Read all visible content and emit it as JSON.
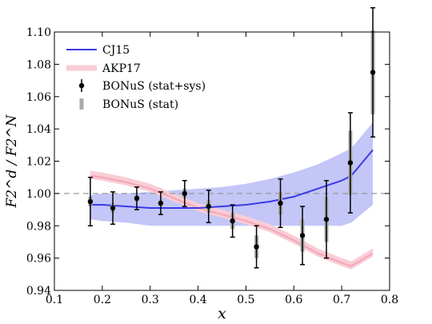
{
  "chart_data": {
    "type": "line",
    "xlabel": "x",
    "ylabel": "F2^d / F2^N",
    "xlim": [
      0.1,
      0.8
    ],
    "ylim": [
      0.94,
      1.1
    ],
    "xticks": [
      "0.1",
      "0.2",
      "0.3",
      "0.4",
      "0.5",
      "0.6",
      "0.7",
      "0.8"
    ],
    "yticks": [
      "0.94",
      "0.96",
      "0.98",
      "1.00",
      "1.02",
      "1.04",
      "1.06",
      "1.08",
      "1.10"
    ],
    "reference_line": 1.0,
    "grid": false,
    "legend_position": "top-left",
    "legend": [
      "CJ15",
      "AKP17",
      "BONuS (stat+sys)",
      "BONuS (stat)"
    ],
    "colors": {
      "cj15_line": "#3a3ae6",
      "cj15_band": "#c3c6f7",
      "akp17_line": "#f4a8b8",
      "akp17_band": "#f9cdd6",
      "points": "#000000",
      "stat_bar": "#aaaaaa",
      "reference": "#999999"
    },
    "series": [
      {
        "name": "CJ15",
        "x": [
          0.175,
          0.2,
          0.25,
          0.3,
          0.35,
          0.4,
          0.45,
          0.5,
          0.55,
          0.6,
          0.65,
          0.7,
          0.72,
          0.765
        ],
        "y": [
          0.993,
          0.993,
          0.992,
          0.991,
          0.991,
          0.991,
          0.992,
          0.993,
          0.995,
          0.998,
          1.003,
          1.008,
          1.011,
          1.027
        ],
        "lower": [
          0.984,
          0.983,
          0.982,
          0.98,
          0.98,
          0.98,
          0.98,
          0.98,
          0.98,
          0.98,
          0.98,
          0.98,
          0.982,
          0.993
        ],
        "upper": [
          0.999,
          1.0,
          1.0,
          1.001,
          1.002,
          1.003,
          1.004,
          1.006,
          1.009,
          1.013,
          1.018,
          1.025,
          1.028,
          1.044
        ]
      },
      {
        "name": "AKP17",
        "x": [
          0.175,
          0.2,
          0.25,
          0.3,
          0.35,
          0.4,
          0.45,
          0.5,
          0.55,
          0.6,
          0.65,
          0.7,
          0.72,
          0.765
        ],
        "y": [
          1.011,
          1.01,
          1.007,
          1.003,
          0.997,
          0.991,
          0.987,
          0.983,
          0.978,
          0.971,
          0.963,
          0.957,
          0.955,
          0.963
        ],
        "lower": [
          1.009,
          1.008,
          1.005,
          1.001,
          0.995,
          0.989,
          0.985,
          0.981,
          0.976,
          0.969,
          0.961,
          0.955,
          0.953,
          0.961
        ],
        "upper": [
          1.014,
          1.013,
          1.01,
          1.006,
          1.0,
          0.994,
          0.99,
          0.986,
          0.981,
          0.974,
          0.966,
          0.96,
          0.958,
          0.966
        ]
      },
      {
        "name": "BONuS (stat+sys)",
        "x": [
          0.175,
          0.222,
          0.272,
          0.322,
          0.372,
          0.422,
          0.472,
          0.522,
          0.572,
          0.618,
          0.668,
          0.718,
          0.765
        ],
        "y": [
          0.995,
          0.991,
          0.997,
          0.994,
          1.0,
          0.992,
          0.983,
          0.967,
          0.994,
          0.974,
          0.984,
          1.019,
          1.075
        ],
        "err_total": [
          0.015,
          0.01,
          0.007,
          0.007,
          0.008,
          0.01,
          0.01,
          0.013,
          0.015,
          0.018,
          0.024,
          0.031,
          0.04
        ],
        "err_stat": [
          0.003,
          0.003,
          0.002,
          0.002,
          0.003,
          0.004,
          0.005,
          0.007,
          0.007,
          0.01,
          0.014,
          0.02,
          0.026
        ]
      }
    ]
  }
}
